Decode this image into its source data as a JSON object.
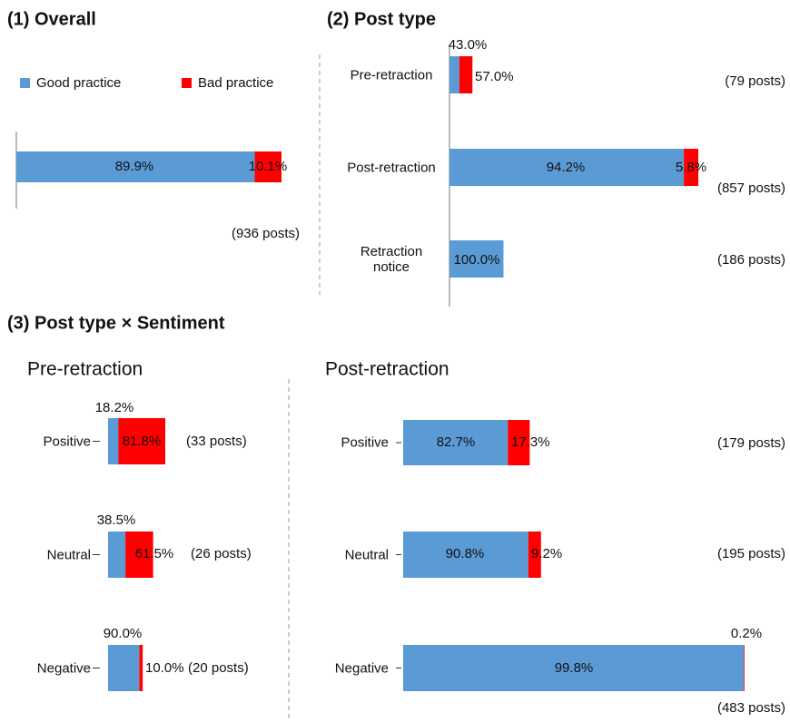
{
  "chart_data": [
    {
      "type": "bar",
      "orientation": "horizontal",
      "stacked": true,
      "title": "(1) Overall",
      "legend": "top",
      "categories": [
        null
      ],
      "series": [
        {
          "name": "Good practice",
          "color": "#5b9bd5",
          "values": [
            89.9
          ],
          "value_labels": [
            "89.9%"
          ]
        },
        {
          "name": "Bad practice",
          "color": "#ff0000",
          "values": [
            10.1
          ],
          "value_labels": [
            "10.1%"
          ]
        }
      ],
      "posts": [
        936
      ],
      "posts_labels": [
        "(936 posts)"
      ]
    },
    {
      "type": "bar",
      "orientation": "horizontal",
      "stacked": true,
      "title": "(2) Post type",
      "categories": [
        "Pre-retraction",
        "Post-retraction",
        "Retraction notice"
      ],
      "series": [
        {
          "color": "#5b9bd5",
          "values": [
            43.0,
            94.2,
            100.0
          ],
          "value_labels": [
            "43.0%",
            "94.2%",
            "100.0%"
          ]
        },
        {
          "color": "#ff0000",
          "values": [
            57.0,
            5.8,
            null
          ],
          "value_labels": [
            "57.0%",
            "5.8%",
            null
          ]
        }
      ],
      "posts": [
        79,
        857,
        186
      ],
      "posts_labels": [
        "(79 posts)",
        "(857 posts)",
        "(186 posts)"
      ]
    },
    {
      "type": "bar",
      "orientation": "horizontal",
      "stacked": true,
      "title": "(3) Post type × Sentiment",
      "subtitle": "Pre-retraction",
      "categories": [
        "Positive",
        "Neutral",
        "Negative"
      ],
      "series": [
        {
          "color": "#5b9bd5",
          "values": [
            18.2,
            38.5,
            90.0
          ],
          "value_labels": [
            "18.2%",
            "38.5%",
            "90.0%"
          ]
        },
        {
          "color": "#ff0000",
          "values": [
            81.8,
            61.5,
            10.0
          ],
          "value_labels": [
            "81.8%",
            "61.5%",
            "10.0%"
          ]
        }
      ],
      "posts": [
        33,
        26,
        20
      ],
      "posts_labels": [
        "(33 posts)",
        "(26 posts)",
        "(20 posts)"
      ]
    },
    {
      "type": "bar",
      "orientation": "horizontal",
      "stacked": true,
      "subtitle": "Post-retraction",
      "categories": [
        "Positive",
        "Neutral",
        "Negative"
      ],
      "series": [
        {
          "color": "#5b9bd5",
          "values": [
            82.7,
            90.8,
            99.8
          ],
          "value_labels": [
            "82.7%",
            "90.8%",
            "99.8%"
          ]
        },
        {
          "color": "#ff0000",
          "values": [
            17.3,
            9.2,
            0.2
          ],
          "value_labels": [
            "17.3%",
            "9.2%",
            "0.2%"
          ]
        }
      ],
      "posts": [
        179,
        195,
        483
      ],
      "posts_labels": [
        "(179 posts)",
        "(195 posts)",
        "(483 posts)"
      ]
    }
  ]
}
